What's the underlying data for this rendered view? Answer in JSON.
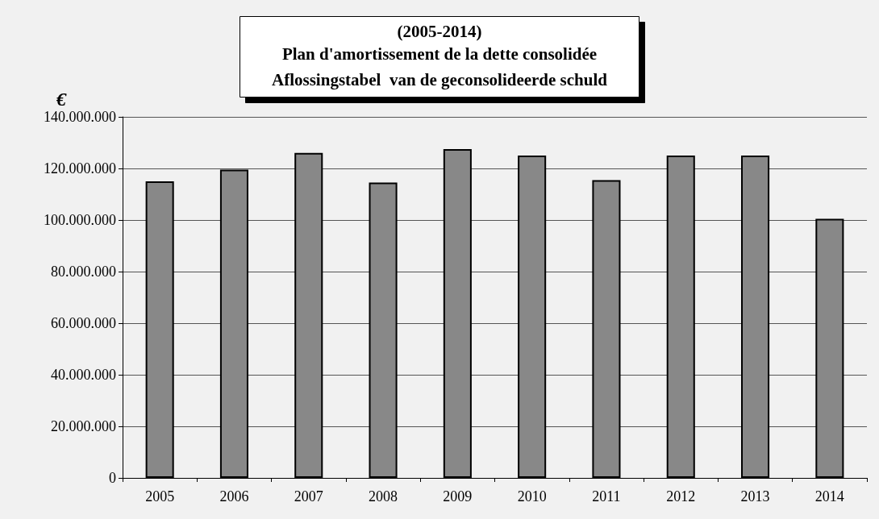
{
  "chart_data": {
    "type": "bar",
    "title": "(2005-2014)",
    "subtitle": "Plan d'amortissement de la dette consolidée\nAflossingstabel  van de geconsolideerde schuld",
    "ylabel": "€",
    "categories": [
      "2005",
      "2006",
      "2007",
      "2008",
      "2009",
      "2010",
      "2011",
      "2012",
      "2013",
      "2014"
    ],
    "values": [
      115000000,
      119500000,
      126000000,
      114500000,
      127500000,
      125000000,
      115500000,
      125000000,
      125000000,
      100500000
    ],
    "color": "#888888",
    "ylim": [
      0,
      140000000
    ],
    "yticks": [
      0,
      {
        "value": 20000000,
        "label": "20.000.000"
      },
      {
        "value": 40000000,
        "label": "40.000.000"
      },
      {
        "value": 60000000,
        "label": "60.000.000"
      },
      {
        "value": 80000000,
        "label": "80.000.000"
      },
      {
        "value": 100000000,
        "label": "100.000.000"
      },
      {
        "value": 120000000,
        "label": "120.000.000"
      },
      {
        "value": 140000000,
        "label": "140.000.000"
      }
    ],
    "grid": "y"
  }
}
